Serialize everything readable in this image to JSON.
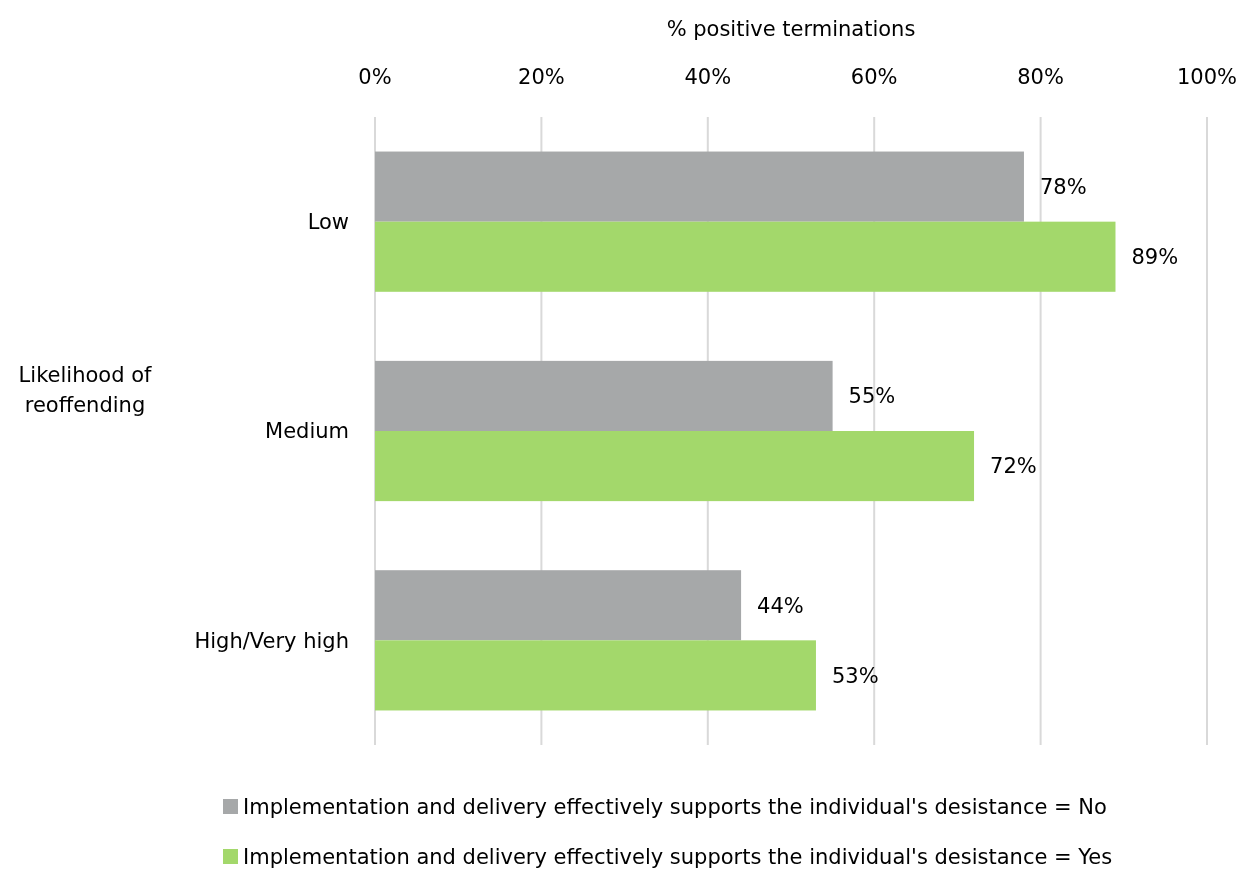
{
  "chart_data": {
    "type": "bar",
    "orientation": "horizontal",
    "xlabel": "% positive terminations",
    "ylabel": "Likelihood of reoffending",
    "categories": [
      "Low",
      "Medium",
      "High/Very high"
    ],
    "series": [
      {
        "name": "Implementation and delivery effectively supports the individual's desistance = No",
        "color": "#a6a8a9",
        "values": [
          78,
          55,
          44
        ],
        "value_labels": [
          "78%",
          "55%",
          "44%"
        ]
      },
      {
        "name": "Implementation and delivery effectively supports the individual's desistance = Yes",
        "color": "#a3d86b",
        "values": [
          89,
          72,
          53
        ],
        "value_labels": [
          "89%",
          "72%",
          "53%"
        ]
      }
    ],
    "xlim": [
      0,
      100
    ],
    "xticks": [
      {
        "value": 0,
        "label": "0%"
      },
      {
        "value": 20,
        "label": "20%"
      },
      {
        "value": 40,
        "label": "40%"
      },
      {
        "value": 60,
        "label": "60%"
      },
      {
        "value": 80,
        "label": "80%"
      },
      {
        "value": 100,
        "label": "100%"
      }
    ],
    "grid": "x",
    "legend": "bottom"
  }
}
